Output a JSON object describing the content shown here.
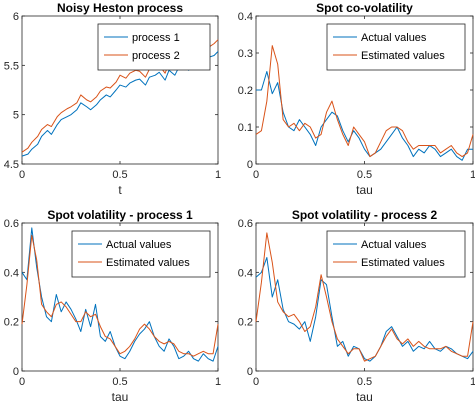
{
  "colors": {
    "series1": "#0072BD",
    "series2": "#D95319"
  },
  "chart_data": [
    {
      "type": "line",
      "title": "Noisy Heston process",
      "xlabel": "t",
      "ylabel": "",
      "xlim": [
        0,
        1
      ],
      "ylim": [
        4.5,
        6
      ],
      "xticks": [
        0,
        0.5,
        1
      ],
      "xtick_labels": [
        "0",
        "0.5",
        "1"
      ],
      "yticks": [
        4.5,
        5,
        5.5,
        6
      ],
      "ytick_labels": [
        "4.5",
        "5",
        "5.5",
        "6"
      ],
      "legend_position": "top-right",
      "series": [
        {
          "name": "process 1",
          "x": [
            0,
            0.03,
            0.05,
            0.08,
            0.1,
            0.13,
            0.15,
            0.18,
            0.2,
            0.23,
            0.25,
            0.28,
            0.3,
            0.33,
            0.35,
            0.38,
            0.4,
            0.43,
            0.45,
            0.48,
            0.5,
            0.53,
            0.55,
            0.58,
            0.6,
            0.63,
            0.65,
            0.68,
            0.7,
            0.73,
            0.75,
            0.78,
            0.8,
            0.83,
            0.85,
            0.88,
            0.9,
            0.93,
            0.95,
            0.98,
            1
          ],
          "values": [
            4.58,
            4.6,
            4.65,
            4.7,
            4.78,
            4.84,
            4.8,
            4.9,
            4.95,
            4.98,
            5.0,
            5.05,
            5.12,
            5.08,
            5.05,
            5.1,
            5.15,
            5.2,
            5.18,
            5.25,
            5.3,
            5.28,
            5.32,
            5.35,
            5.36,
            5.3,
            5.38,
            5.4,
            5.43,
            5.35,
            5.45,
            5.4,
            5.48,
            5.5,
            5.45,
            5.5,
            5.55,
            5.53,
            5.58,
            5.6,
            5.64
          ]
        },
        {
          "name": "process 2",
          "x": [
            0,
            0.03,
            0.05,
            0.08,
            0.1,
            0.13,
            0.15,
            0.18,
            0.2,
            0.23,
            0.25,
            0.28,
            0.3,
            0.33,
            0.35,
            0.38,
            0.4,
            0.43,
            0.45,
            0.48,
            0.5,
            0.53,
            0.55,
            0.58,
            0.6,
            0.63,
            0.65,
            0.68,
            0.7,
            0.73,
            0.75,
            0.78,
            0.8,
            0.83,
            0.85,
            0.88,
            0.9,
            0.93,
            0.95,
            0.98,
            1
          ],
          "values": [
            4.62,
            4.66,
            4.72,
            4.78,
            4.85,
            4.9,
            4.88,
            4.98,
            5.02,
            5.06,
            5.08,
            5.12,
            5.2,
            5.15,
            5.13,
            5.18,
            5.24,
            5.28,
            5.27,
            5.33,
            5.4,
            5.37,
            5.42,
            5.45,
            5.44,
            5.38,
            5.46,
            5.48,
            5.5,
            5.42,
            5.52,
            5.47,
            5.52,
            5.55,
            5.5,
            5.56,
            5.62,
            5.6,
            5.68,
            5.72,
            5.76
          ]
        }
      ]
    },
    {
      "type": "line",
      "title": "Spot co-volatility",
      "xlabel": "tau",
      "ylabel": "",
      "xlim": [
        0,
        1
      ],
      "ylim": [
        0,
        0.4
      ],
      "xticks": [
        0,
        0.5,
        1
      ],
      "xtick_labels": [
        "0",
        "0.5",
        "1"
      ],
      "yticks": [
        0,
        0.1,
        0.2,
        0.3,
        0.4
      ],
      "ytick_labels": [
        "0",
        "0.1",
        "0.2",
        "0.3",
        "0.4"
      ],
      "legend_position": "top-right",
      "series": [
        {
          "name": "Actual values",
          "x": [
            0,
            0.025,
            0.05,
            0.075,
            0.1,
            0.125,
            0.15,
            0.175,
            0.2,
            0.225,
            0.25,
            0.275,
            0.3,
            0.325,
            0.35,
            0.375,
            0.4,
            0.425,
            0.45,
            0.475,
            0.5,
            0.525,
            0.55,
            0.575,
            0.6,
            0.625,
            0.65,
            0.675,
            0.7,
            0.725,
            0.75,
            0.775,
            0.8,
            0.825,
            0.85,
            0.875,
            0.9,
            0.925,
            0.95,
            0.975,
            1
          ],
          "values": [
            0.2,
            0.2,
            0.25,
            0.19,
            0.22,
            0.14,
            0.1,
            0.09,
            0.12,
            0.1,
            0.08,
            0.05,
            0.1,
            0.12,
            0.14,
            0.13,
            0.09,
            0.06,
            0.09,
            0.07,
            0.04,
            0.02,
            0.03,
            0.04,
            0.06,
            0.08,
            0.1,
            0.07,
            0.05,
            0.02,
            0.04,
            0.03,
            0.05,
            0.04,
            0.02,
            0.03,
            0.04,
            0.02,
            0.01,
            0.04,
            0.04
          ]
        },
        {
          "name": "Estimated values",
          "x": [
            0,
            0.025,
            0.05,
            0.075,
            0.1,
            0.125,
            0.15,
            0.175,
            0.2,
            0.225,
            0.25,
            0.275,
            0.3,
            0.325,
            0.35,
            0.375,
            0.4,
            0.425,
            0.45,
            0.475,
            0.5,
            0.525,
            0.55,
            0.575,
            0.6,
            0.625,
            0.65,
            0.675,
            0.7,
            0.725,
            0.75,
            0.775,
            0.8,
            0.825,
            0.85,
            0.875,
            0.9,
            0.925,
            0.95,
            0.975,
            1
          ],
          "values": [
            0.08,
            0.09,
            0.17,
            0.32,
            0.27,
            0.12,
            0.1,
            0.11,
            0.09,
            0.11,
            0.1,
            0.07,
            0.08,
            0.14,
            0.17,
            0.12,
            0.08,
            0.05,
            0.1,
            0.08,
            0.06,
            0.02,
            0.03,
            0.06,
            0.09,
            0.1,
            0.1,
            0.09,
            0.06,
            0.04,
            0.05,
            0.05,
            0.05,
            0.05,
            0.03,
            0.04,
            0.05,
            0.03,
            0.02,
            0.03,
            0.08
          ]
        }
      ]
    },
    {
      "type": "line",
      "title": "Spot volatility - process 1",
      "xlabel": "tau",
      "ylabel": "",
      "xlim": [
        0,
        1
      ],
      "ylim": [
        0,
        0.6
      ],
      "xticks": [
        0,
        0.5,
        1
      ],
      "xtick_labels": [
        "0",
        "0.5",
        "1"
      ],
      "yticks": [
        0,
        0.2,
        0.4,
        0.6
      ],
      "ytick_labels": [
        "0",
        "0.2",
        "0.4",
        "0.6"
      ],
      "legend_position": "top-right",
      "series": [
        {
          "name": "Actual values",
          "x": [
            0,
            0.025,
            0.05,
            0.075,
            0.1,
            0.125,
            0.15,
            0.175,
            0.2,
            0.225,
            0.25,
            0.275,
            0.3,
            0.325,
            0.35,
            0.375,
            0.4,
            0.425,
            0.45,
            0.475,
            0.5,
            0.525,
            0.55,
            0.575,
            0.6,
            0.625,
            0.65,
            0.675,
            0.7,
            0.725,
            0.75,
            0.775,
            0.8,
            0.825,
            0.85,
            0.875,
            0.9,
            0.925,
            0.95,
            0.975,
            1
          ],
          "values": [
            0.4,
            0.37,
            0.58,
            0.42,
            0.3,
            0.22,
            0.2,
            0.31,
            0.24,
            0.28,
            0.25,
            0.21,
            0.16,
            0.25,
            0.18,
            0.27,
            0.14,
            0.12,
            0.16,
            0.1,
            0.06,
            0.05,
            0.08,
            0.12,
            0.15,
            0.17,
            0.2,
            0.14,
            0.1,
            0.08,
            0.13,
            0.1,
            0.05,
            0.06,
            0.08,
            0.05,
            0.04,
            0.07,
            0.05,
            0.04,
            0.1
          ]
        },
        {
          "name": "Estimated values",
          "x": [
            0,
            0.025,
            0.05,
            0.075,
            0.1,
            0.125,
            0.15,
            0.175,
            0.2,
            0.225,
            0.25,
            0.275,
            0.3,
            0.325,
            0.35,
            0.375,
            0.4,
            0.425,
            0.45,
            0.475,
            0.5,
            0.525,
            0.55,
            0.575,
            0.6,
            0.625,
            0.65,
            0.675,
            0.7,
            0.725,
            0.75,
            0.775,
            0.8,
            0.825,
            0.85,
            0.875,
            0.9,
            0.925,
            0.95,
            0.975,
            1
          ],
          "values": [
            0.19,
            0.35,
            0.55,
            0.45,
            0.27,
            0.24,
            0.22,
            0.27,
            0.28,
            0.26,
            0.23,
            0.2,
            0.2,
            0.24,
            0.22,
            0.23,
            0.18,
            0.14,
            0.13,
            0.1,
            0.07,
            0.08,
            0.1,
            0.13,
            0.17,
            0.19,
            0.17,
            0.14,
            0.12,
            0.11,
            0.12,
            0.11,
            0.08,
            0.07,
            0.07,
            0.06,
            0.07,
            0.08,
            0.07,
            0.07,
            0.19
          ]
        }
      ]
    },
    {
      "type": "line",
      "title": "Spot volatility - process 2",
      "xlabel": "tau",
      "ylabel": "",
      "xlim": [
        0,
        1
      ],
      "ylim": [
        0,
        0.6
      ],
      "xticks": [
        0,
        0.5,
        1
      ],
      "xtick_labels": [
        "0",
        "0.5",
        "1"
      ],
      "yticks": [
        0,
        0.2,
        0.4,
        0.6
      ],
      "ytick_labels": [
        "0",
        "0.2",
        "0.4",
        "0.6"
      ],
      "legend_position": "top-right",
      "series": [
        {
          "name": "Actual values",
          "x": [
            0,
            0.025,
            0.05,
            0.075,
            0.1,
            0.125,
            0.15,
            0.175,
            0.2,
            0.225,
            0.25,
            0.275,
            0.3,
            0.325,
            0.35,
            0.375,
            0.4,
            0.425,
            0.45,
            0.475,
            0.5,
            0.525,
            0.55,
            0.575,
            0.6,
            0.625,
            0.65,
            0.675,
            0.7,
            0.725,
            0.75,
            0.775,
            0.8,
            0.825,
            0.85,
            0.875,
            0.9,
            0.925,
            0.95,
            0.975,
            1
          ],
          "values": [
            0.38,
            0.4,
            0.46,
            0.3,
            0.37,
            0.25,
            0.2,
            0.19,
            0.17,
            0.2,
            0.12,
            0.22,
            0.37,
            0.35,
            0.22,
            0.1,
            0.12,
            0.06,
            0.1,
            0.09,
            0.05,
            0.04,
            0.06,
            0.1,
            0.16,
            0.18,
            0.14,
            0.1,
            0.12,
            0.08,
            0.1,
            0.09,
            0.12,
            0.09,
            0.08,
            0.1,
            0.09,
            0.07,
            0.06,
            0.05,
            0.08
          ]
        },
        {
          "name": "Estimated values",
          "x": [
            0,
            0.025,
            0.05,
            0.075,
            0.1,
            0.125,
            0.15,
            0.175,
            0.2,
            0.225,
            0.25,
            0.275,
            0.3,
            0.325,
            0.35,
            0.375,
            0.4,
            0.425,
            0.45,
            0.475,
            0.5,
            0.525,
            0.55,
            0.575,
            0.6,
            0.625,
            0.65,
            0.675,
            0.7,
            0.725,
            0.75,
            0.775,
            0.8,
            0.825,
            0.85,
            0.875,
            0.9,
            0.925,
            0.95,
            0.975,
            1
          ],
          "values": [
            0.2,
            0.36,
            0.56,
            0.44,
            0.28,
            0.24,
            0.22,
            0.23,
            0.2,
            0.16,
            0.18,
            0.26,
            0.39,
            0.3,
            0.2,
            0.13,
            0.1,
            0.07,
            0.09,
            0.09,
            0.04,
            0.05,
            0.06,
            0.1,
            0.14,
            0.17,
            0.13,
            0.11,
            0.13,
            0.1,
            0.12,
            0.1,
            0.09,
            0.09,
            0.09,
            0.1,
            0.08,
            0.07,
            0.06,
            0.06,
            0.2
          ]
        }
      ]
    }
  ]
}
